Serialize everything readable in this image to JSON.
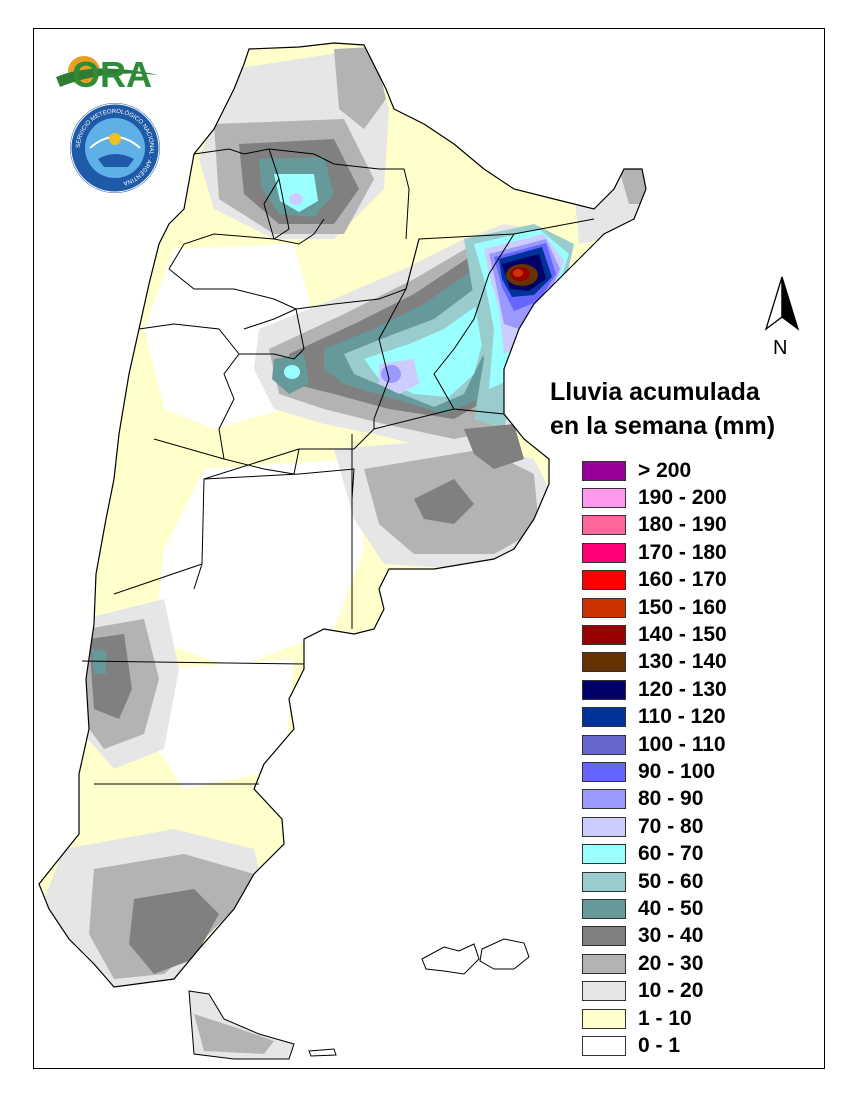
{
  "north_label": "N",
  "logo_text": "ORA",
  "seal_text": "SERVICIO METEOROLÓGICO NACIONAL · ARGENTINA",
  "legend": {
    "title_line1": "Lluvia acumulada",
    "title_line2": "en la semana (mm)",
    "items": [
      {
        "label": "> 200",
        "color": "#990099"
      },
      {
        "label": "190 - 200",
        "color": "#ff99ee"
      },
      {
        "label": "180 - 190",
        "color": "#ff6699"
      },
      {
        "label": "170 - 180",
        "color": "#ff0077"
      },
      {
        "label": "160 - 170",
        "color": "#ff0000"
      },
      {
        "label": "150 - 160",
        "color": "#cc3300"
      },
      {
        "label": "140 - 150",
        "color": "#990000"
      },
      {
        "label": "130 - 140",
        "color": "#663300"
      },
      {
        "label": "120 - 130",
        "color": "#000066"
      },
      {
        "label": "110 - 120",
        "color": "#003399"
      },
      {
        "label": "100 - 110",
        "color": "#6666cc"
      },
      {
        "label": "90 - 100",
        "color": "#6666ff"
      },
      {
        "label": "80 - 90",
        "color": "#9999ff"
      },
      {
        "label": "70 - 80",
        "color": "#ccccff"
      },
      {
        "label": "60 - 70",
        "color": "#99ffff"
      },
      {
        "label": "50 - 60",
        "color": "#99cccc"
      },
      {
        "label": "40 - 50",
        "color": "#669999"
      },
      {
        "label": "30 - 40",
        "color": "#808080"
      },
      {
        "label": "20 - 30",
        "color": "#b3b3b3"
      },
      {
        "label": "10 - 20",
        "color": "#e6e6e6"
      },
      {
        "label": "1 - 10",
        "color": "#ffffcc"
      },
      {
        "label": "0 - 1",
        "color": "#ffffff"
      }
    ]
  }
}
